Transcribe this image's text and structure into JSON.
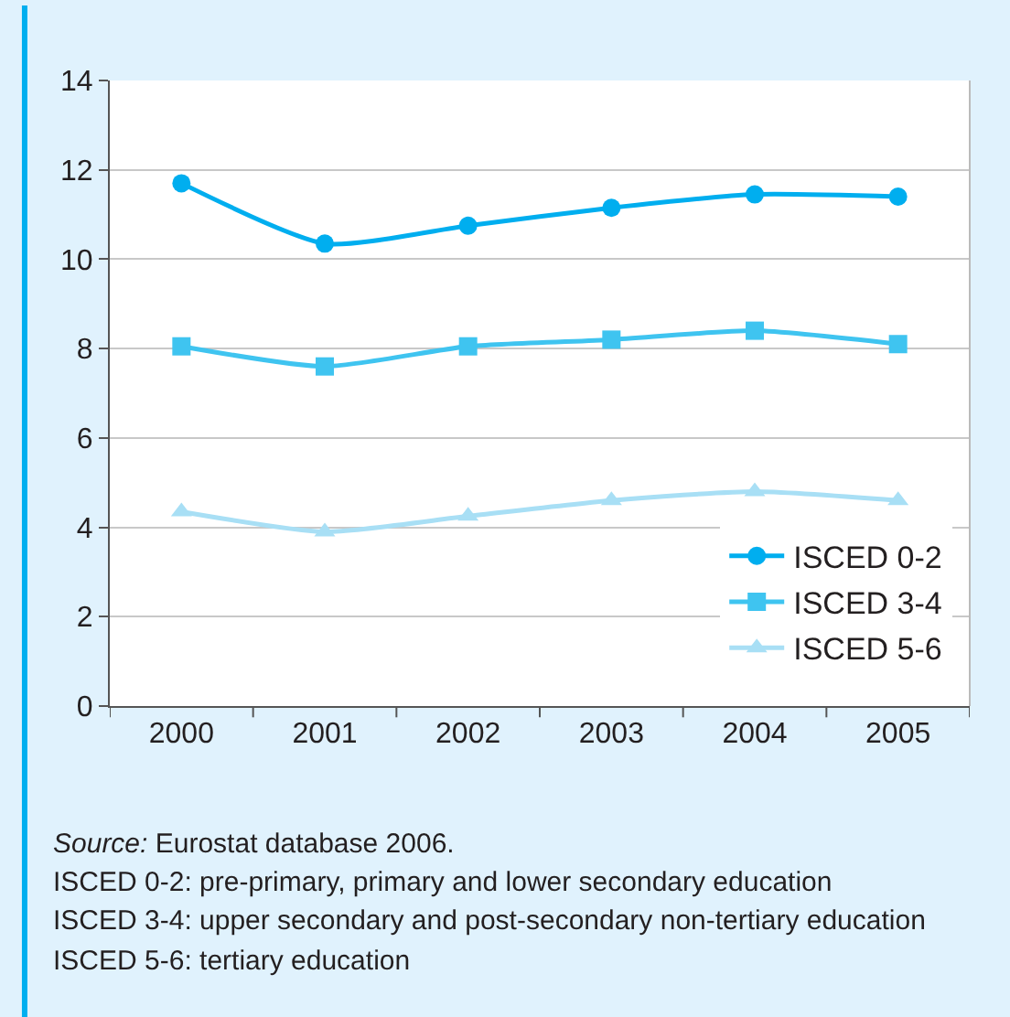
{
  "chart_data": {
    "type": "line",
    "categories": [
      "2000",
      "2001",
      "2002",
      "2003",
      "2004",
      "2005"
    ],
    "series": [
      {
        "name": "ISCED 0-2",
        "color": "#00aeef",
        "marker": "circle",
        "values": [
          11.7,
          10.35,
          10.75,
          11.15,
          11.45,
          11.4
        ]
      },
      {
        "name": "ISCED 3-4",
        "color": "#3fc4f0",
        "marker": "square",
        "values": [
          8.05,
          7.6,
          8.05,
          8.2,
          8.4,
          8.1
        ]
      },
      {
        "name": "ISCED 5-6",
        "color": "#a8dff5",
        "marker": "triangle",
        "values": [
          4.35,
          3.9,
          4.25,
          4.6,
          4.8,
          4.6
        ]
      }
    ],
    "ylim": [
      0,
      14
    ],
    "yticks": [
      0,
      2,
      4,
      6,
      8,
      10,
      12,
      14
    ],
    "grid": "y",
    "legend": "bottom right",
    "line_style": "solid",
    "annotations": [
      "Source: Eurostat database 2006.",
      "ISCED 0-2: pre-primary, primary and lower secondary education",
      "ISCED 3-4: upper secondary and post-secondary non-tertiary education",
      "ISCED 5-6: tertiary education"
    ]
  }
}
